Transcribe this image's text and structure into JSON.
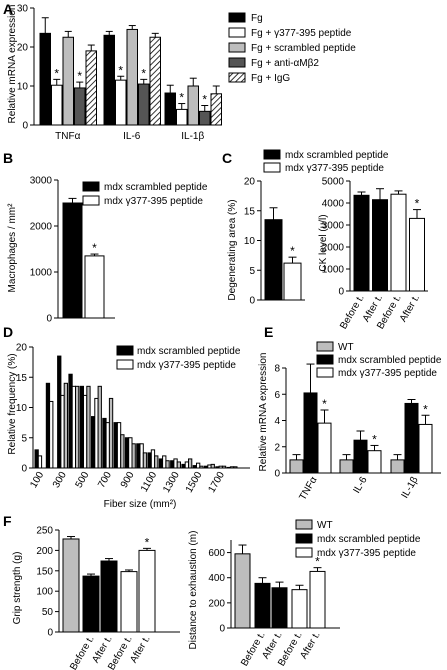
{
  "chart_data": [
    {
      "panel": "A",
      "type": "bar",
      "ylabel": "Relative mRNA expression",
      "ylim": [
        0,
        30
      ],
      "yticks": [
        0,
        10,
        20,
        30
      ],
      "categories": [
        "TNFα",
        "IL-6",
        "IL-1β"
      ],
      "legend": [
        "Fg",
        "Fg + γ377-395 peptide",
        "Fg + scrambled peptide",
        "Fg + anti-αMβ2",
        "Fg + IgG"
      ],
      "series": [
        {
          "name": "Fg",
          "fill": "#000000",
          "values": [
            23.5,
            23,
            8.2
          ],
          "errors": [
            4,
            1,
            2
          ]
        },
        {
          "name": "Fg + γ377-395 peptide",
          "fill": "#ffffff",
          "values": [
            10.2,
            11.5,
            4
          ],
          "errors": [
            1.5,
            1,
            1.5
          ],
          "sig": [
            true,
            true,
            true
          ]
        },
        {
          "name": "Fg + scrambled peptide",
          "fill": "#bdbdbd",
          "values": [
            22.5,
            24.5,
            10
          ],
          "errors": [
            1.5,
            1,
            2
          ]
        },
        {
          "name": "Fg + anti-αMβ2",
          "fill": "#555555",
          "values": [
            9.5,
            10.5,
            3.5
          ],
          "errors": [
            1.5,
            1.2,
            1.5
          ],
          "sig": [
            true,
            true,
            true
          ]
        },
        {
          "name": "Fg + IgG",
          "fill": "hatch",
          "values": [
            19,
            22.5,
            8
          ],
          "errors": [
            1.5,
            1,
            2
          ]
        }
      ]
    },
    {
      "panel": "B",
      "type": "bar",
      "ylabel": "Macrophages / mm²",
      "ylim": [
        0,
        3000
      ],
      "yticks": [
        0,
        1000,
        2000,
        3000
      ],
      "legend": [
        "mdx scrambled peptide",
        "mdx γ377-395 peptide"
      ],
      "series": [
        {
          "name": "mdx scrambled peptide",
          "fill": "#000000",
          "values": [
            2500
          ],
          "errors": [
            100
          ]
        },
        {
          "name": "mdx γ377-395 peptide",
          "fill": "#ffffff",
          "values": [
            1350
          ],
          "errors": [
            40
          ],
          "sig": [
            true
          ]
        }
      ]
    },
    {
      "panel": "C-left",
      "type": "bar",
      "ylabel": "Degenerating area (%)",
      "ylim": [
        0,
        20
      ],
      "yticks": [
        0,
        5,
        10,
        15,
        20
      ],
      "legend": [
        "mdx scrambled peptide",
        "mdx γ377-395 peptide"
      ],
      "series": [
        {
          "name": "mdx scrambled peptide",
          "fill": "#000000",
          "values": [
            13.5
          ],
          "errors": [
            2
          ]
        },
        {
          "name": "mdx γ377-395 peptide",
          "fill": "#ffffff",
          "values": [
            6.2
          ],
          "errors": [
            1
          ],
          "sig": [
            true
          ]
        }
      ]
    },
    {
      "panel": "C-right",
      "type": "bar",
      "ylabel": "CK level (u/l)",
      "ylim": [
        0,
        5000
      ],
      "yticks": [
        0,
        1000,
        2000,
        3000,
        4000,
        5000
      ],
      "categories": [
        "Before t.",
        "After t.",
        "Before t.",
        "After t."
      ],
      "values": [
        4350,
        4150,
        4400,
        3300
      ],
      "errors": [
        150,
        500,
        150,
        400
      ],
      "fills": [
        "#000000",
        "#000000",
        "#ffffff",
        "#ffffff"
      ],
      "sig": [
        false,
        false,
        false,
        true
      ]
    },
    {
      "panel": "D",
      "type": "bar",
      "ylabel": "Relative frequency (%)",
      "xlabel": "Fiber size (mm²)",
      "ylim": [
        0,
        20
      ],
      "yticks": [
        0,
        5,
        10,
        15,
        20
      ],
      "xticks": [
        "100",
        "300",
        "500",
        "700",
        "900",
        "1100",
        "1300",
        "1500",
        "1700"
      ],
      "legend": [
        "mdx scrambled peptide",
        "mdx γ377-395 peptide"
      ],
      "series": [
        {
          "name": "mdx scrambled peptide",
          "fill": "#000000",
          "values": [
            3,
            14,
            18.5,
            15.5,
            13.5,
            8.5,
            8.2,
            7.5,
            5,
            4,
            2.5,
            1.5,
            1.2,
            0.6,
            0.4,
            0.3,
            0.2,
            0.1
          ]
        },
        {
          "name": "mdx γ377-395 peptide",
          "fill": "#ffffff",
          "values": [
            2,
            11,
            12,
            13.5,
            12,
            11.5,
            7.5,
            7.5,
            5,
            4,
            3,
            2,
            1.5,
            1,
            0.8,
            0.5,
            0.3,
            0.2
          ]
        },
        {
          "name": "grey",
          "fill": "#bdbdbd",
          "values": [
            0,
            0,
            14,
            13.5,
            13.5,
            13.5,
            11.5,
            5.5,
            4,
            2.5,
            2,
            1.2,
            1,
            1.5,
            0.3,
            0.6,
            0.3,
            0.2
          ]
        }
      ]
    },
    {
      "panel": "E",
      "type": "bar",
      "ylabel": "Relative mRNA expression",
      "ylim": [
        0,
        8
      ],
      "yticks": [
        0,
        2,
        4,
        6,
        8
      ],
      "categories": [
        "TNFα",
        "IL-6",
        "IL-1β"
      ],
      "legend": [
        "WT",
        "mdx scrambled peptide",
        "mdx γ377-395 peptide"
      ],
      "series": [
        {
          "name": "WT",
          "fill": "#bdbdbd",
          "values": [
            1,
            1,
            1
          ],
          "errors": [
            0.4,
            0.4,
            0.4
          ]
        },
        {
          "name": "mdx scrambled peptide",
          "fill": "#000000",
          "values": [
            6.1,
            2.5,
            5.3
          ],
          "errors": [
            2.2,
            0.7,
            0.3
          ]
        },
        {
          "name": "mdx γ377-395 peptide",
          "fill": "#ffffff",
          "values": [
            3.8,
            1.7,
            3.7
          ],
          "errors": [
            1,
            0.4,
            0.7
          ],
          "sig": [
            true,
            true,
            true
          ]
        }
      ]
    },
    {
      "panel": "F-left",
      "type": "bar",
      "ylabel": "Grip strength (g)",
      "ylim": [
        0,
        250
      ],
      "yticks": [
        0,
        50,
        100,
        150,
        200,
        250
      ],
      "categories": [
        "",
        "Before t.",
        "After t.",
        "Before t.",
        "After t."
      ],
      "values": [
        228,
        137,
        174,
        148,
        200
      ],
      "errors": [
        6,
        5,
        6,
        4,
        5
      ],
      "fills": [
        "#bdbdbd",
        "#000000",
        "#000000",
        "#ffffff",
        "#ffffff"
      ],
      "sig": [
        false,
        false,
        false,
        false,
        true
      ]
    },
    {
      "panel": "F-right",
      "type": "bar",
      "ylabel": "Distance to exhaustion (m)",
      "ylim": [
        0,
        700
      ],
      "yticks": [
        0,
        200,
        400,
        600
      ],
      "legend": [
        "WT",
        "mdx scrambled peptide",
        "mdx γ377-395 peptide"
      ],
      "categories": [
        "",
        "Before t.",
        "After t.",
        "Before t.",
        "After t."
      ],
      "values": [
        590,
        355,
        320,
        305,
        450
      ],
      "errors": [
        70,
        45,
        45,
        35,
        30
      ],
      "fills": [
        "#bdbdbd",
        "#000000",
        "#000000",
        "#ffffff",
        "#ffffff"
      ],
      "sig": [
        false,
        false,
        false,
        false,
        true
      ]
    }
  ],
  "panel_letters": [
    "A",
    "B",
    "C",
    "D",
    "E",
    "F"
  ],
  "sig_mark": "*"
}
